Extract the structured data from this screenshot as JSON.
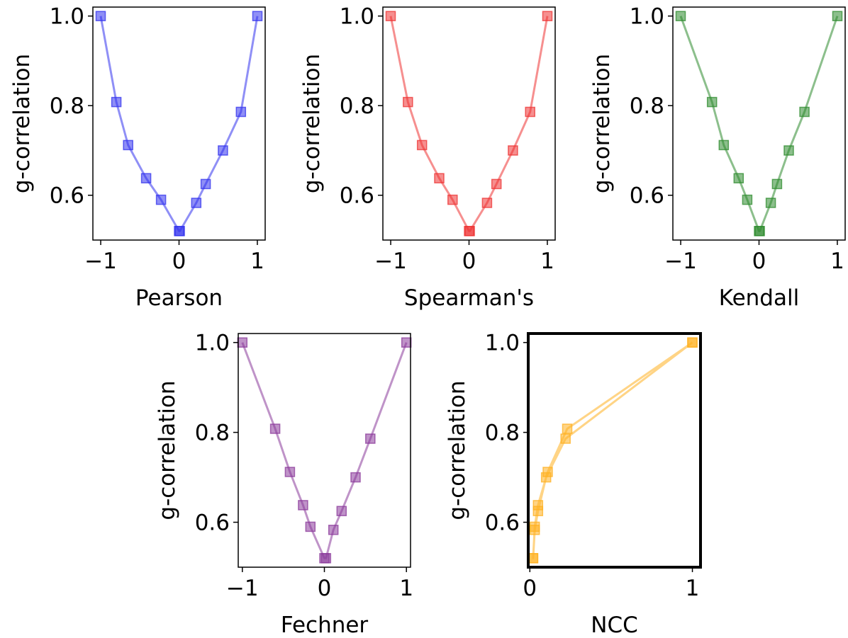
{
  "chart_data": [
    {
      "type": "line",
      "xlabel": "Pearson",
      "ylabel": "g-correlation",
      "xlim": [
        -1.1,
        1.1
      ],
      "ylim": [
        0.5,
        1.02
      ],
      "xticks": [
        -1,
        0,
        1
      ],
      "xtick_labels": [
        "−1",
        "0",
        "1"
      ],
      "yticks": [
        0.6,
        0.8,
        1.0
      ],
      "ytick_labels": [
        "0.6",
        "0.8",
        "1.0"
      ],
      "color": "#3333ee",
      "marker": "square",
      "x": [
        -1.0,
        -0.8,
        -0.65,
        -0.42,
        -0.23,
        0.0,
        0.01,
        0.22,
        0.34,
        0.56,
        0.79,
        1.0
      ],
      "y": [
        1.0,
        0.808,
        0.712,
        0.638,
        0.59,
        0.52,
        0.52,
        0.583,
        0.625,
        0.7,
        0.786,
        1.0
      ],
      "grid": false
    },
    {
      "type": "line",
      "xlabel": "Spearman's",
      "ylabel": "g-correlation",
      "xlim": [
        -1.1,
        1.1
      ],
      "ylim": [
        0.5,
        1.02
      ],
      "xticks": [
        -1,
        0,
        1
      ],
      "xtick_labels": [
        "−1",
        "0",
        "1"
      ],
      "yticks": [
        0.6,
        0.8,
        1.0
      ],
      "ytick_labels": [
        "0.6",
        "0.8",
        "1.0"
      ],
      "color": "#ee3333",
      "marker": "square",
      "x": [
        -1.0,
        -0.78,
        -0.6,
        -0.38,
        -0.21,
        0.0,
        0.01,
        0.23,
        0.35,
        0.56,
        0.78,
        1.0
      ],
      "y": [
        1.0,
        0.808,
        0.712,
        0.638,
        0.59,
        0.52,
        0.52,
        0.583,
        0.625,
        0.7,
        0.786,
        1.0
      ],
      "grid": false
    },
    {
      "type": "line",
      "xlabel": "Kendall",
      "ylabel": "g-correlation",
      "xlim": [
        -1.1,
        1.1
      ],
      "ylim": [
        0.5,
        1.02
      ],
      "xticks": [
        -1,
        0,
        1
      ],
      "xtick_labels": [
        "−1",
        "0",
        "1"
      ],
      "yticks": [
        0.6,
        0.8,
        1.0
      ],
      "ytick_labels": [
        "0.6",
        "0.8",
        "1.0"
      ],
      "color": "#2e8b2e",
      "marker": "square",
      "x": [
        -1.0,
        -0.6,
        -0.45,
        -0.26,
        -0.15,
        0.0,
        0.01,
        0.15,
        0.23,
        0.38,
        0.58,
        1.0
      ],
      "y": [
        1.0,
        0.808,
        0.712,
        0.638,
        0.59,
        0.52,
        0.52,
        0.583,
        0.625,
        0.7,
        0.786,
        1.0
      ],
      "grid": false
    },
    {
      "type": "line",
      "xlabel": "Fechner",
      "ylabel": "g-correlation",
      "xlim": [
        -1.05,
        1.05
      ],
      "ylim": [
        0.5,
        1.02
      ],
      "xticks": [
        -1,
        0,
        1
      ],
      "xtick_labels": [
        "−1",
        "0",
        "1"
      ],
      "yticks": [
        0.6,
        0.8,
        1.0
      ],
      "ytick_labels": [
        "0.6",
        "0.8",
        "1.0"
      ],
      "color": "#8b3a9b",
      "marker": "square",
      "x": [
        -1.0,
        -0.6,
        -0.42,
        -0.26,
        -0.17,
        0.0,
        0.02,
        0.11,
        0.21,
        0.38,
        0.56,
        1.0
      ],
      "y": [
        1.0,
        0.808,
        0.712,
        0.638,
        0.59,
        0.52,
        0.52,
        0.583,
        0.625,
        0.7,
        0.786,
        1.0
      ],
      "grid": false
    },
    {
      "type": "line",
      "xlabel": "NCC",
      "ylabel": "g-correlation",
      "xlim": [
        -0.01,
        1.05
      ],
      "ylim": [
        0.5,
        1.02
      ],
      "xticks": [
        0,
        1
      ],
      "xtick_labels": [
        "0",
        "1"
      ],
      "yticks": [
        0.6,
        0.8,
        1.0
      ],
      "ytick_labels": [
        "0.6",
        "0.8",
        "1.0"
      ],
      "color": "#ffb020",
      "marker": "square",
      "frame": "bold",
      "x": [
        1.0,
        0.23,
        0.11,
        0.05,
        0.03,
        0.02,
        0.02,
        0.03,
        0.05,
        0.1,
        0.22,
        1.0
      ],
      "y": [
        1.0,
        0.808,
        0.712,
        0.638,
        0.59,
        0.52,
        0.52,
        0.583,
        0.625,
        0.7,
        0.786,
        1.0
      ],
      "grid": false
    }
  ]
}
